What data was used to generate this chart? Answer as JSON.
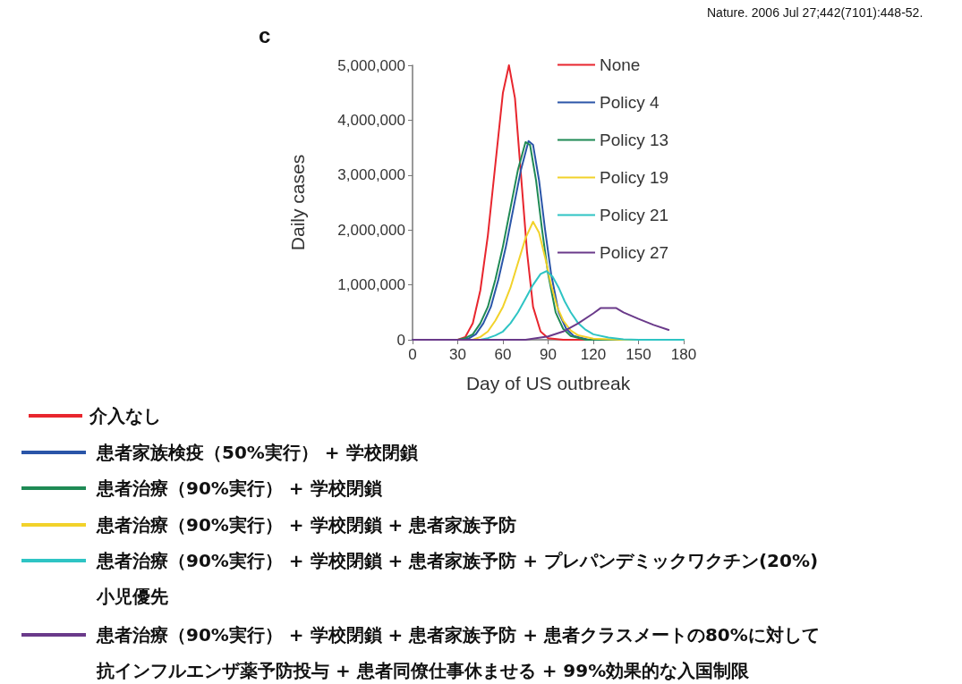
{
  "chart_data": {
    "type": "line",
    "xlabel": "Day of US outbreak",
    "ylabel": "Daily cases",
    "xlim": [
      0,
      180
    ],
    "xticks": [
      0,
      30,
      60,
      90,
      120,
      150,
      180
    ],
    "ylim": [
      0,
      5000000
    ],
    "yticks": [
      {
        "value": 0,
        "label": "0"
      },
      {
        "value": 1000000,
        "label": "1,000,000"
      },
      {
        "value": 2000000,
        "label": "2,000,000"
      },
      {
        "value": 3000000,
        "label": "3,000,000"
      },
      {
        "value": 4000000,
        "label": "4,000,000"
      },
      {
        "value": 5000000,
        "label": "5,000,000"
      }
    ],
    "grid": false,
    "legend": "top right",
    "marker": "none",
    "line_style": "solid",
    "series": [
      {
        "name": "None",
        "color": "#e8262e",
        "x": [
          0,
          30,
          35,
          40,
          45,
          50,
          55,
          60,
          64,
          68,
          72,
          76,
          80,
          85,
          90,
          100,
          180
        ],
        "values": [
          0,
          0,
          50000,
          300000,
          900000,
          1900000,
          3200000,
          4500000,
          5000000,
          4400000,
          3000000,
          1600000,
          600000,
          150000,
          30000,
          0,
          0
        ]
      },
      {
        "name": "Policy 4",
        "color": "#2a55a8",
        "x": [
          0,
          32,
          37,
          42,
          47,
          52,
          57,
          62,
          67,
          72,
          77,
          80,
          84,
          88,
          92,
          97,
          102,
          107,
          117,
          180
        ],
        "values": [
          0,
          0,
          20000,
          100000,
          300000,
          600000,
          1100000,
          1700000,
          2400000,
          3100000,
          3620000,
          3550000,
          2900000,
          2000000,
          1200000,
          500000,
          200000,
          70000,
          0,
          0
        ]
      },
      {
        "name": "Policy 13",
        "color": "#1f8a55",
        "x": [
          0,
          30,
          35,
          40,
          45,
          50,
          55,
          60,
          65,
          70,
          75,
          78,
          82,
          86,
          90,
          95,
          100,
          105,
          115,
          180
        ],
        "values": [
          0,
          0,
          30000,
          100000,
          300000,
          600000,
          1100000,
          1700000,
          2400000,
          3100000,
          3600000,
          3550000,
          2900000,
          2000000,
          1200000,
          500000,
          200000,
          70000,
          0,
          0
        ]
      },
      {
        "name": "Policy 19",
        "color": "#f2d22a",
        "x": [
          0,
          40,
          45,
          50,
          55,
          60,
          65,
          70,
          75,
          80,
          84,
          88,
          92,
          96,
          100,
          105,
          110,
          120,
          140,
          180
        ],
        "values": [
          0,
          0,
          50000,
          150000,
          350000,
          600000,
          950000,
          1400000,
          1850000,
          2150000,
          1950000,
          1500000,
          1000000,
          600000,
          350000,
          170000,
          80000,
          20000,
          0,
          0
        ]
      },
      {
        "name": "Policy 21",
        "color": "#2ec4c4",
        "x": [
          0,
          45,
          50,
          55,
          60,
          65,
          70,
          75,
          80,
          85,
          89,
          93,
          97,
          101,
          105,
          110,
          115,
          120,
          130,
          140,
          150,
          180
        ],
        "values": [
          0,
          0,
          30000,
          80000,
          150000,
          300000,
          500000,
          750000,
          1000000,
          1200000,
          1250000,
          1150000,
          950000,
          700000,
          500000,
          300000,
          180000,
          100000,
          40000,
          10000,
          0,
          0
        ]
      },
      {
        "name": "Policy 27",
        "color": "#6a3a8a",
        "x": [
          0,
          75,
          80,
          90,
          100,
          110,
          120,
          125,
          135,
          140,
          150,
          160,
          170
        ],
        "values": [
          0,
          0,
          20000,
          60000,
          150000,
          300000,
          480000,
          580000,
          580000,
          500000,
          380000,
          270000,
          180000
        ]
      }
    ],
    "annotations": [
      "c",
      "Nature. 2006 Jul 27;442(7101):448-52.",
      "介入なし",
      "患者家族検疫（50%実行） + 学校閉鎖",
      "患者治療（90%実行） + 学校閉鎖",
      "患者治療（90%実行） + 学校閉鎖 + 患者家族予防",
      "患者治療（90%実行） + 学校閉鎖 + 患者家族予防 + プレパンデミックワクチン(20%)小児優先",
      "患者治療（90%実行） + 学校閉鎖 + 患者家族予防 + 患者クラスメートの80%に対して抗インフルエンザ薬予防投与 + 患者同僚仕事休ませる + 99%効果的な入国制限"
    ]
  }
}
